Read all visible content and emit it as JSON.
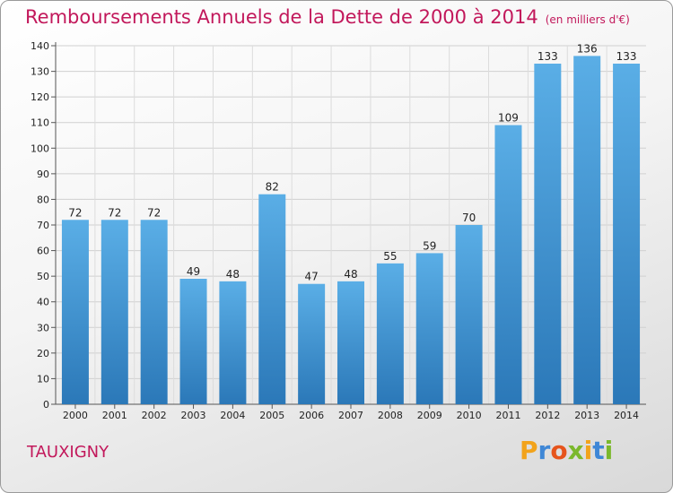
{
  "header": {
    "title": "Remboursements Annuels de la Dette de 2000 à 2014",
    "subtitle": "(en milliers d'€)"
  },
  "footer": {
    "place": "TAUXIGNY",
    "logo_letters": [
      "P",
      "r",
      "o",
      "x",
      "i",
      "t",
      "i"
    ]
  },
  "colors": {
    "accent": "#c2185b",
    "bar_top": "#5aaee6",
    "bar_bottom": "#2b78b8"
  },
  "chart_data": {
    "type": "bar",
    "title": "Remboursements Annuels de la Dette de 2000 à 2014",
    "subtitle": "(en milliers d'€)",
    "xlabel": "",
    "ylabel": "",
    "ylim": [
      0,
      140
    ],
    "ytick_step": 10,
    "grid": true,
    "categories": [
      "2000",
      "2001",
      "2002",
      "2003",
      "2004",
      "2005",
      "2006",
      "2007",
      "2008",
      "2009",
      "2010",
      "2011",
      "2012",
      "2013",
      "2014"
    ],
    "values": [
      72,
      72,
      72,
      49,
      48,
      82,
      47,
      48,
      55,
      59,
      70,
      109,
      133,
      136,
      133
    ]
  }
}
